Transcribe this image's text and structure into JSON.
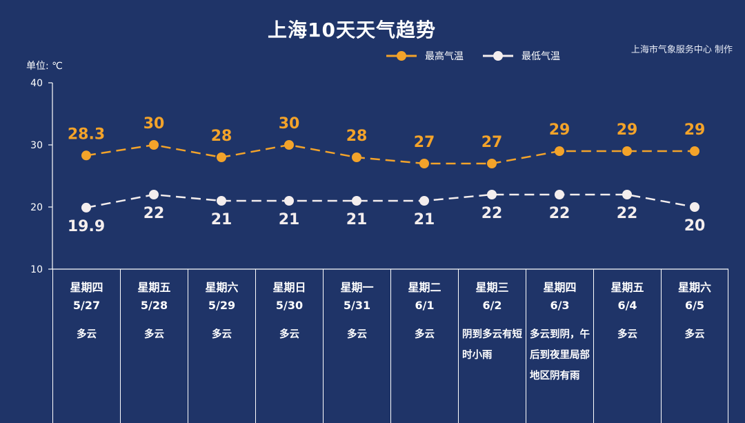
{
  "title": "上海10天天气趋势",
  "credit": "上海市气象服务中心 制作",
  "unit_label": "单位: ℃",
  "colors": {
    "background": "#1f3468",
    "high": "#f3a32a",
    "low": "#f4eeee",
    "axis": "#ffffff"
  },
  "chart_data": {
    "type": "line",
    "title": "上海10天天气趋势",
    "ylabel": "单位: ℃",
    "ylim": [
      10,
      40
    ],
    "yticks": [
      10,
      20,
      30,
      40
    ],
    "legend_placement": "top-right",
    "categories": [
      "5/27",
      "5/28",
      "5/29",
      "5/30",
      "5/31",
      "6/1",
      "6/2",
      "6/3",
      "6/4",
      "6/5"
    ],
    "series": [
      {
        "name": "最高气温",
        "color": "#f3a32a",
        "values": [
          28.3,
          30,
          28,
          30,
          28,
          27,
          27,
          29,
          29,
          29
        ],
        "labels": [
          "28.3",
          "30",
          "28",
          "30",
          "28",
          "27",
          "27",
          "29",
          "29",
          "29"
        ]
      },
      {
        "name": "最低气温",
        "color": "#f4eeee",
        "values": [
          19.9,
          22,
          21,
          21,
          21,
          21,
          22,
          22,
          22,
          20
        ],
        "labels": [
          "19.9",
          "22",
          "21",
          "21",
          "21",
          "21",
          "22",
          "22",
          "22",
          "20"
        ]
      }
    ]
  },
  "days": [
    {
      "weekday": "星期四",
      "date": "5/27",
      "condition": "多云"
    },
    {
      "weekday": "星期五",
      "date": "5/28",
      "condition": "多云"
    },
    {
      "weekday": "星期六",
      "date": "5/29",
      "condition": "多云"
    },
    {
      "weekday": "星期日",
      "date": "5/30",
      "condition": "多云"
    },
    {
      "weekday": "星期一",
      "date": "5/31",
      "condition": "多云"
    },
    {
      "weekday": "星期二",
      "date": "6/1",
      "condition": "多云"
    },
    {
      "weekday": "星期三",
      "date": "6/2",
      "condition": "阴到多云有短时小雨"
    },
    {
      "weekday": "星期四",
      "date": "6/3",
      "condition": "多云到阴，午后到夜里局部地区阴有雨"
    },
    {
      "weekday": "星期五",
      "date": "6/4",
      "condition": "多云"
    },
    {
      "weekday": "星期六",
      "date": "6/5",
      "condition": "多云"
    }
  ]
}
